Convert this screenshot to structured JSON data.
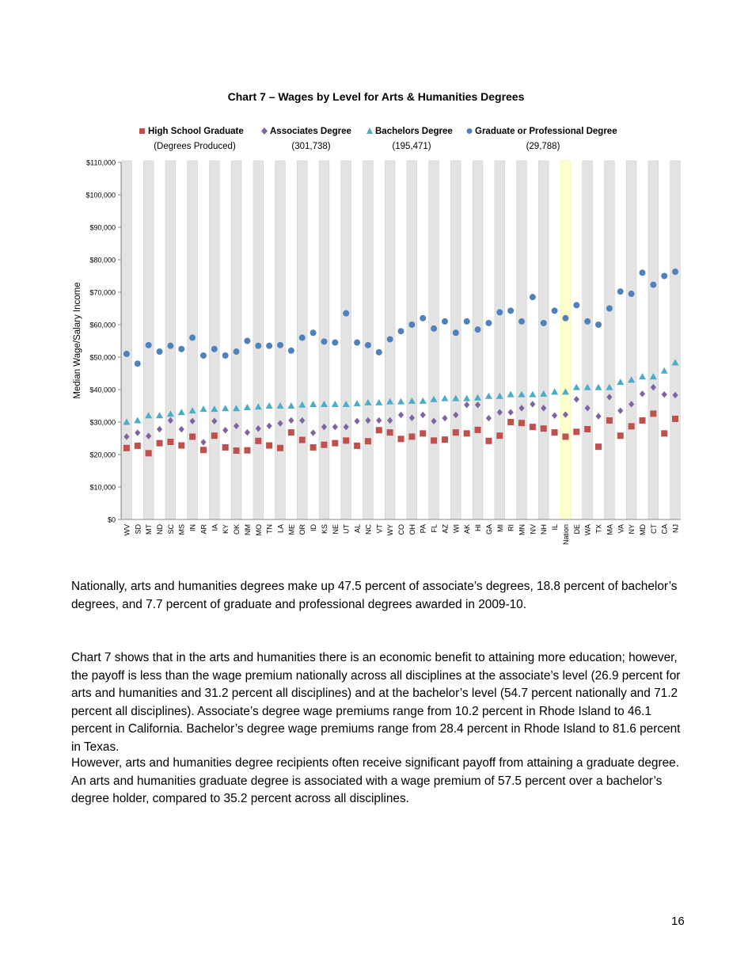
{
  "chart_data": {
    "type": "scatter",
    "title": "Chart 7 – Wages by Level for Arts & Humanities Degrees",
    "ylabel": "Median Wage/Salary Income",
    "xlabel": "",
    "ylim": [
      0,
      110000
    ],
    "yticks": [
      "$0",
      "$10,000",
      "$20,000",
      "$30,000",
      "$40,000",
      "$50,000",
      "$60,000",
      "$70,000",
      "$80,000",
      "$90,000",
      "$100,000",
      "$110,000"
    ],
    "legend_placement": "top",
    "legend_subtitle": "(Degrees Produced)",
    "highlight_category": "Nation",
    "highlight_color": "#ffffcc",
    "categories": [
      "WV",
      "SD",
      "MT",
      "ND",
      "SC",
      "MS",
      "IN",
      "AR",
      "IA",
      "KY",
      "OK",
      "NM",
      "MO",
      "TN",
      "LA",
      "ME",
      "OR",
      "ID",
      "KS",
      "NE",
      "UT",
      "AL",
      "NC",
      "VT",
      "WY",
      "CO",
      "OH",
      "PA",
      "FL",
      "AZ",
      "WI",
      "AK",
      "HI",
      "GA",
      "MI",
      "RI",
      "MN",
      "NV",
      "NH",
      "IL",
      "Nation",
      "DE",
      "WA",
      "TX",
      "MA",
      "VA",
      "NY",
      "MD",
      "CT",
      "CA",
      "NJ"
    ],
    "series": [
      {
        "name": "High School Graduate",
        "degrees_produced": "",
        "marker": "square",
        "color": "#c0504d",
        "values": [
          22000,
          22700,
          20400,
          23500,
          23900,
          22800,
          25500,
          21400,
          25800,
          22200,
          21200,
          21300,
          24200,
          22800,
          22000,
          26800,
          24500,
          22200,
          23000,
          23500,
          24300,
          22700,
          24100,
          27500,
          26800,
          24800,
          25500,
          26500,
          24300,
          24600,
          26800,
          26500,
          27600,
          24200,
          25800,
          30000,
          29700,
          28500,
          28000,
          26800,
          25500,
          27000,
          27800,
          22400,
          30500,
          25800,
          28700,
          30500,
          32600,
          26500,
          31000
        ]
      },
      {
        "name": "Associates Degree",
        "degrees_produced": "(301,738)",
        "marker": "diamond",
        "color": "#8064a2",
        "values": [
          25500,
          26700,
          25700,
          27800,
          30500,
          27800,
          30300,
          23800,
          30300,
          27500,
          28800,
          26800,
          28000,
          28800,
          29600,
          30500,
          30500,
          26700,
          28500,
          28500,
          28500,
          30300,
          30500,
          30500,
          30500,
          32200,
          31300,
          32200,
          30300,
          31200,
          32200,
          35300,
          35300,
          31200,
          33000,
          33000,
          34300,
          35500,
          34300,
          32000,
          32300,
          37000,
          34300,
          31800,
          37700,
          33500,
          35500,
          38700,
          40700,
          38500,
          38300
        ]
      },
      {
        "name": "Bachelors Degree",
        "degrees_produced": "(195,471)",
        "marker": "triangle",
        "color": "#4bacc6",
        "values": [
          30000,
          30500,
          32000,
          32000,
          32500,
          33000,
          33500,
          34000,
          34000,
          34200,
          34200,
          34500,
          34700,
          35000,
          35000,
          35000,
          35300,
          35500,
          35500,
          35500,
          35500,
          35700,
          36000,
          36000,
          36300,
          36300,
          36500,
          36500,
          37000,
          37300,
          37300,
          37300,
          37500,
          38000,
          38000,
          38500,
          38500,
          38500,
          38700,
          39300,
          39300,
          40700,
          40700,
          40700,
          40700,
          42300,
          43000,
          44000,
          44000,
          45800,
          48300
        ]
      },
      {
        "name": "Graduate or Professional Degree",
        "degrees_produced": "(29,788)",
        "marker": "circle",
        "color": "#4f81bd",
        "values": [
          51000,
          48000,
          53700,
          51700,
          53500,
          52500,
          56000,
          50500,
          52500,
          50500,
          51700,
          55000,
          53500,
          53500,
          53700,
          52000,
          56000,
          57500,
          54800,
          54500,
          63500,
          54500,
          53700,
          51500,
          55500,
          58000,
          60000,
          62000,
          58800,
          61000,
          57500,
          61000,
          58500,
          60500,
          63800,
          64300,
          61000,
          68500,
          60500,
          64300,
          62000,
          66000,
          61000,
          60000,
          65000,
          70200,
          69500,
          76000,
          72300,
          75000,
          76300
        ]
      }
    ]
  },
  "body": {
    "paragraphs": [
      "Nationally, arts and humanities degrees make up 47.5 percent of associate’s degrees, 18.8 percent of bachelor’s degrees, and 7.7 percent of graduate and professional degrees awarded in 2009-10.",
      "Chart 7 shows that in the arts and humanities there is an economic benefit to attaining more education; however, the payoff is less than the wage premium nationally across all disciplines at the associate’s level (26.9 percent for arts and humanities and 31.2 percent all disciplines) and at the bachelor’s level (54.7 percent nationally and 71.2 percent all disciplines). Associate’s degree wage premiums range from 10.2 percent in Rhode Island to 46.1 percent in California. Bachelor’s degree wage premiums range from 28.4 percent in Rhode Island to 81.6 percent in Texas.",
      "However, arts and humanities degree recipients often receive significant payoff from attaining a graduate degree. An arts and humanities graduate degree is associated with a wage premium of 57.5 percent over a bachelor’s degree holder, compared to 35.2 percent across all disciplines."
    ],
    "page_number": "16"
  }
}
